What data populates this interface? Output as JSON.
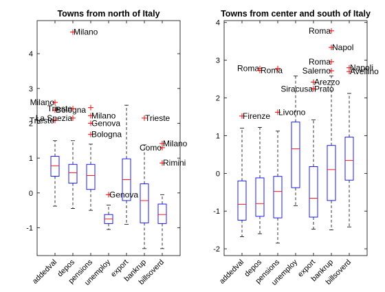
{
  "chart_data": [
    {
      "type": "box",
      "title": "Towns from north of Italy",
      "categories": [
        "addedval",
        "depos",
        "pensions",
        "unemploy",
        "export",
        "bankrup",
        "billsoverd"
      ],
      "ylim": [
        -1.8,
        4.95
      ],
      "yticks": [
        -1,
        0,
        1,
        2,
        3,
        4
      ],
      "boxes": [
        {
          "whisker_low": -0.38,
          "q1": 0.48,
          "median": 0.78,
          "q3": 1.05,
          "whisker_high": 1.5
        },
        {
          "whisker_low": -0.45,
          "q1": 0.28,
          "median": 0.58,
          "q3": 0.82,
          "whisker_high": 1.5
        },
        {
          "whisker_low": -0.5,
          "q1": 0.1,
          "median": 0.5,
          "q3": 0.82,
          "whisker_high": 1.4
        },
        {
          "whisker_low": -1.05,
          "q1": -0.88,
          "median": -0.75,
          "q3": -0.62,
          "whisker_high": -0.35
        },
        {
          "whisker_low": -0.9,
          "q1": -0.22,
          "median": 0.38,
          "q3": 0.98,
          "whisker_high": 2.52
        },
        {
          "whisker_low": -1.6,
          "q1": -0.86,
          "median": -0.22,
          "q3": 0.26,
          "whisker_high": 1.38
        },
        {
          "whisker_low": -1.6,
          "q1": -0.88,
          "median": -0.62,
          "q3": -0.32,
          "whisker_high": -0.05
        }
      ],
      "outliers": [
        {
          "cat": 0,
          "y": 2.6,
          "label": "Milano",
          "side": "left"
        },
        {
          "cat": 0,
          "y": 2.38,
          "label": "Bologna",
          "side": "right"
        },
        {
          "cat": 0,
          "y": 2.08,
          "label": "Trieste",
          "side": "left"
        },
        {
          "cat": 1,
          "y": 2.15,
          "label": "La Spezia",
          "side": "left"
        },
        {
          "cat": 1,
          "y": 2.42,
          "label": "Trieste",
          "side": "left"
        },
        {
          "cat": 1,
          "y": 4.62,
          "label": "Milano",
          "side": "right"
        },
        {
          "cat": 2,
          "y": 2.45,
          "label": "",
          "side": "right"
        },
        {
          "cat": 2,
          "y": 2.22,
          "label": "Milano",
          "side": "right"
        },
        {
          "cat": 2,
          "y": 2.0,
          "label": "Genova",
          "side": "right"
        },
        {
          "cat": 2,
          "y": 1.68,
          "label": "Bologna",
          "side": "right"
        },
        {
          "cat": 3,
          "y": -0.05,
          "label": "Genova",
          "side": "right"
        },
        {
          "cat": 5,
          "y": 2.15,
          "label": "Trieste",
          "side": "right"
        },
        {
          "cat": 6,
          "y": 1.42,
          "label": "Milano",
          "side": "right"
        },
        {
          "cat": 6,
          "y": 1.3,
          "label": "Como",
          "side": "left"
        },
        {
          "cat": 6,
          "y": 0.86,
          "label": "Rimini",
          "side": "right"
        }
      ]
    },
    {
      "type": "box",
      "title": "Towns from center and south of Italy",
      "categories": [
        "addedval",
        "depos",
        "pensions",
        "unemploy",
        "export",
        "bankrup",
        "billsoverd"
      ],
      "ylim": [
        -2.18,
        4.05
      ],
      "yticks": [
        -2,
        -1,
        0,
        1,
        2,
        3,
        4
      ],
      "boxes": [
        {
          "whisker_low": -1.68,
          "q1": -1.24,
          "median": -0.82,
          "q3": -0.2,
          "whisker_high": 1.2
        },
        {
          "whisker_low": -1.6,
          "q1": -1.14,
          "median": -0.8,
          "q3": -0.12,
          "whisker_high": 1.22
        },
        {
          "whisker_low": -1.85,
          "q1": -1.18,
          "median": -0.48,
          "q3": -0.08,
          "whisker_high": 1.12
        },
        {
          "whisker_low": -0.86,
          "q1": -0.38,
          "median": 0.65,
          "q3": 1.36,
          "whisker_high": 2.58
        },
        {
          "whisker_low": -1.48,
          "q1": -1.16,
          "median": -0.66,
          "q3": 0.18,
          "whisker_high": 1.42
        },
        {
          "whisker_low": -1.5,
          "q1": -0.72,
          "median": 0.1,
          "q3": 0.74,
          "whisker_high": 2.58
        },
        {
          "whisker_low": -1.42,
          "q1": -0.18,
          "median": 0.34,
          "q3": 0.96,
          "whisker_high": 2.12
        }
      ],
      "outliers": [
        {
          "cat": 0,
          "y": 1.52,
          "label": "Firenze",
          "side": "right"
        },
        {
          "cat": 1,
          "y": 2.78,
          "label": "Roma",
          "side": "left"
        },
        {
          "cat": 1,
          "y": 2.73,
          "label": "Roma",
          "side": "right"
        },
        {
          "cat": 2,
          "y": 2.78,
          "label": "",
          "side": "right"
        },
        {
          "cat": 2,
          "y": 1.62,
          "label": "Livorno",
          "side": "right"
        },
        {
          "cat": 4,
          "y": 2.42,
          "label": "Arezzo",
          "side": "right"
        },
        {
          "cat": 4,
          "y": 2.24,
          "label": "Prato",
          "side": "right"
        },
        {
          "cat": 4,
          "y": 2.24,
          "label": "Siracusa",
          "side": "left"
        },
        {
          "cat": 5,
          "y": 3.78,
          "label": "Roma",
          "side": "left"
        },
        {
          "cat": 5,
          "y": 3.34,
          "label": "Napol",
          "side": "right"
        },
        {
          "cat": 5,
          "y": 2.96,
          "label": "Roma",
          "side": "left"
        },
        {
          "cat": 5,
          "y": 2.72,
          "label": "Salerno",
          "side": "left"
        },
        {
          "cat": 6,
          "y": 2.8,
          "label": "Napoli",
          "side": "right"
        },
        {
          "cat": 6,
          "y": 2.7,
          "label": "Avellino",
          "side": "right"
        }
      ]
    }
  ]
}
